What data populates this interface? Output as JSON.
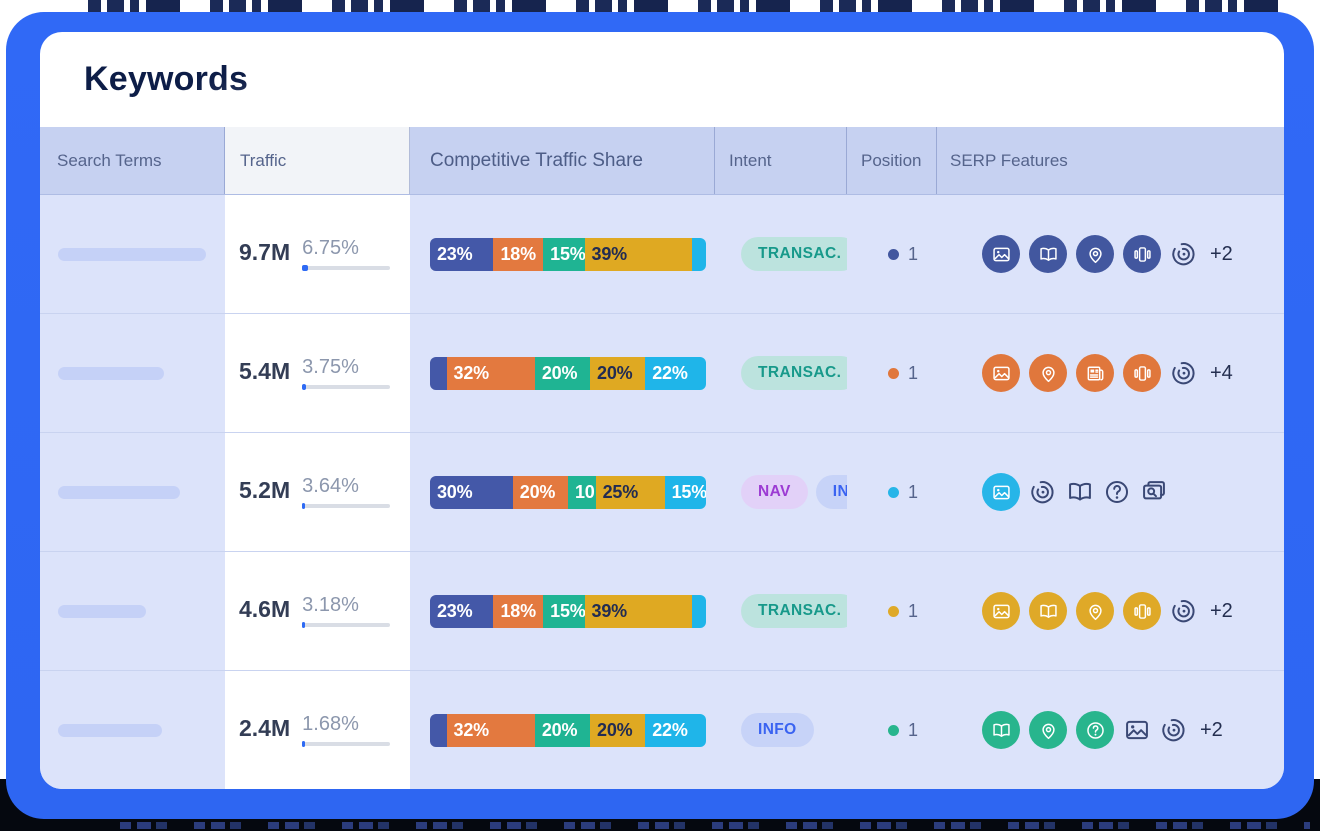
{
  "page": {
    "title": "Keywords"
  },
  "colors": {
    "frame": "#2E66F2",
    "accent_blue": "#2E6AF4",
    "header_bg": "#C6D1F1",
    "row_bg": "#DCE3FA",
    "segments": {
      "navy": "#4458A8",
      "orange": "#E3793F",
      "teal": "#1FB493",
      "yellow": "#DFA922",
      "cyan": "#1FB5E9"
    },
    "segment_text": {
      "light": "#FFFFFF",
      "dark": "#222C52"
    },
    "row_accents": {
      "navy": "#42579F",
      "orange": "#E0773C",
      "cyan": "#27B5E8",
      "yellow": "#DFA928",
      "green": "#28B58D"
    },
    "intent": {
      "transactional": {
        "bg": "#BCE3DE",
        "text": "#17998A"
      },
      "navigational": {
        "bg": "#E2D1F8",
        "text": "#9C3BD3"
      },
      "informational": {
        "bg": "#C7D3F8",
        "text": "#3A63F1"
      }
    },
    "outline_icon": "#3A4875"
  },
  "table": {
    "columns": [
      {
        "id": "search_terms",
        "label": "Search Terms"
      },
      {
        "id": "traffic",
        "label": "Traffic"
      },
      {
        "id": "competitive_traffic_share",
        "label": "Competitive Traffic Share"
      },
      {
        "id": "intent",
        "label": "Intent"
      },
      {
        "id": "position",
        "label": "Position"
      },
      {
        "id": "serp_features",
        "label": "SERP Features"
      }
    ],
    "rows": [
      {
        "term_placeholder_width": 148,
        "traffic": "9.7M",
        "traffic_share": "6.75%",
        "traffic_share_pct": 6.75,
        "segments": [
          {
            "label": "23%",
            "value": 23,
            "color": "navy",
            "text": "light"
          },
          {
            "label": "18%",
            "value": 18,
            "color": "orange",
            "text": "light"
          },
          {
            "label": "15%",
            "value": 15,
            "color": "teal",
            "text": "light"
          },
          {
            "label": "39%",
            "value": 39,
            "color": "yellow",
            "text": "dark"
          },
          {
            "label": "",
            "value": 5,
            "color": "cyan",
            "text": "light"
          }
        ],
        "intents": [
          {
            "label": "TRANSAC.",
            "type": "transactional"
          }
        ],
        "position": {
          "value": "1",
          "color": "navy"
        },
        "serp": {
          "color": "navy",
          "filled_icons": [
            "image",
            "book",
            "pin",
            "carousel"
          ],
          "outline_icons": [
            "spiral"
          ],
          "more": "+2"
        }
      },
      {
        "term_placeholder_width": 106,
        "traffic": "5.4M",
        "traffic_share": "3.75%",
        "traffic_share_pct": 3.75,
        "segments": [
          {
            "label": "",
            "value": 6,
            "color": "navy",
            "text": "light"
          },
          {
            "label": "32%",
            "value": 32,
            "color": "orange",
            "text": "light"
          },
          {
            "label": "20%",
            "value": 20,
            "color": "teal",
            "text": "light"
          },
          {
            "label": "20%",
            "value": 20,
            "color": "yellow",
            "text": "dark"
          },
          {
            "label": "22%",
            "value": 22,
            "color": "cyan",
            "text": "light"
          }
        ],
        "intents": [
          {
            "label": "TRANSAC.",
            "type": "transactional"
          }
        ],
        "position": {
          "value": "1",
          "color": "orange"
        },
        "serp": {
          "color": "orange",
          "filled_icons": [
            "image",
            "pin",
            "news",
            "carousel"
          ],
          "outline_icons": [
            "spiral"
          ],
          "more": "+4"
        }
      },
      {
        "term_placeholder_width": 122,
        "traffic": "5.2M",
        "traffic_share": "3.64%",
        "traffic_share_pct": 3.64,
        "segments": [
          {
            "label": "30%",
            "value": 30,
            "color": "navy",
            "text": "light"
          },
          {
            "label": "20%",
            "value": 20,
            "color": "orange",
            "text": "light"
          },
          {
            "label": "10",
            "value": 10,
            "color": "teal",
            "text": "light"
          },
          {
            "label": "25%",
            "value": 25,
            "color": "yellow",
            "text": "dark"
          },
          {
            "label": "15%",
            "value": 15,
            "color": "cyan",
            "text": "light"
          }
        ],
        "intents": [
          {
            "label": "NAV",
            "type": "navigational"
          },
          {
            "label": "INFO",
            "type": "informational"
          }
        ],
        "position": {
          "value": "1",
          "color": "cyan"
        },
        "serp": {
          "color": "cyan",
          "filled_icons": [
            "image"
          ],
          "outline_icons": [
            "spiral",
            "book",
            "question",
            "related"
          ],
          "more": ""
        }
      },
      {
        "term_placeholder_width": 88,
        "traffic": "4.6M",
        "traffic_share": "3.18%",
        "traffic_share_pct": 3.18,
        "segments": [
          {
            "label": "23%",
            "value": 23,
            "color": "navy",
            "text": "light"
          },
          {
            "label": "18%",
            "value": 18,
            "color": "orange",
            "text": "light"
          },
          {
            "label": "15%",
            "value": 15,
            "color": "teal",
            "text": "light"
          },
          {
            "label": "39%",
            "value": 39,
            "color": "yellow",
            "text": "dark"
          },
          {
            "label": "",
            "value": 5,
            "color": "cyan",
            "text": "light"
          }
        ],
        "intents": [
          {
            "label": "TRANSAC.",
            "type": "transactional"
          }
        ],
        "position": {
          "value": "1",
          "color": "yellow"
        },
        "serp": {
          "color": "yellow",
          "filled_icons": [
            "image",
            "book",
            "pin",
            "carousel"
          ],
          "outline_icons": [
            "spiral"
          ],
          "more": "+2"
        }
      },
      {
        "term_placeholder_width": 104,
        "traffic": "2.4M",
        "traffic_share": "1.68%",
        "traffic_share_pct": 1.68,
        "segments": [
          {
            "label": "",
            "value": 6,
            "color": "navy",
            "text": "light"
          },
          {
            "label": "32%",
            "value": 32,
            "color": "orange",
            "text": "light"
          },
          {
            "label": "20%",
            "value": 20,
            "color": "teal",
            "text": "light"
          },
          {
            "label": "20%",
            "value": 20,
            "color": "yellow",
            "text": "dark"
          },
          {
            "label": "22%",
            "value": 22,
            "color": "cyan",
            "text": "light"
          }
        ],
        "intents": [
          {
            "label": "INFO",
            "type": "informational"
          }
        ],
        "position": {
          "value": "1",
          "color": "green"
        },
        "serp": {
          "color": "green",
          "filled_icons": [
            "book",
            "pin",
            "question"
          ],
          "outline_icons": [
            "image",
            "spiral"
          ],
          "more": "+2"
        }
      }
    ]
  }
}
